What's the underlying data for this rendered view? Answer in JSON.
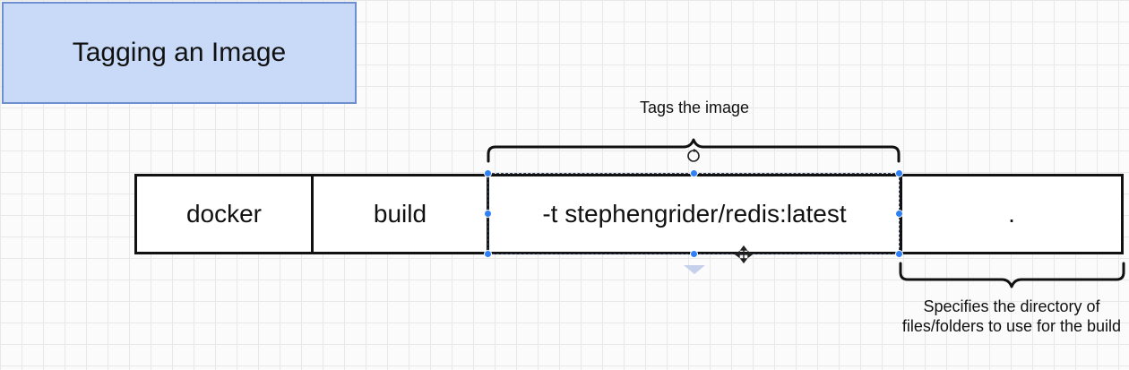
{
  "title": "Tagging an Image",
  "command": {
    "part1": "docker",
    "part2": "build",
    "part3": "-t stephengrider/redis:latest",
    "part4": "."
  },
  "annotations": {
    "tag_label": "Tags the image",
    "dir_label": "Specifies the directory of files/folders to use for the build"
  },
  "colors": {
    "title_fill": "#c9daf8",
    "title_border": "#6d8fcf",
    "selection_handle": "#2f7ff5"
  }
}
